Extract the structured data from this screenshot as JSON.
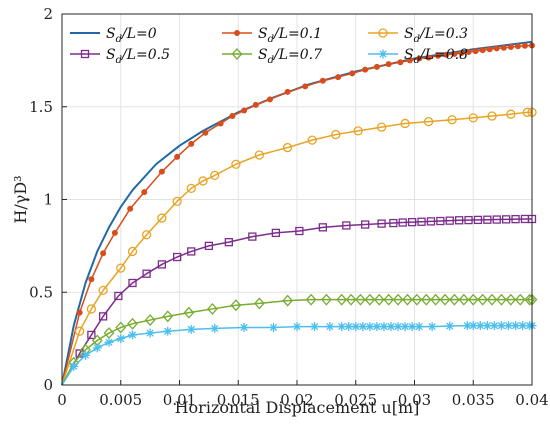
{
  "chart_data": {
    "type": "line",
    "xlabel": "Horizontal Displacement u[m]",
    "ylabel": "H/γD³",
    "xlim": [
      0,
      0.04
    ],
    "ylim": [
      0,
      2
    ],
    "xticks": [
      0,
      0.005,
      0.01,
      0.015,
      0.02,
      0.025,
      0.03,
      0.035,
      0.04
    ],
    "xtick_labels": [
      "0",
      "0.005",
      "0.01",
      "0.015",
      "0.02",
      "0.025",
      "0.03",
      "0.035",
      "0.04"
    ],
    "yticks": [
      0,
      0.5,
      1,
      1.5,
      2
    ],
    "ytick_labels": [
      "0",
      "0.5",
      "1",
      "1.5",
      "2"
    ],
    "grid": true,
    "legend_position": "top-left",
    "series": [
      {
        "name": "S_d/L=0",
        "label_main": "S",
        "label_sub": "d",
        "label_rest": "/L=0",
        "color": "#1f6aa6",
        "marker": "none",
        "x": [
          0,
          0.001,
          0.002,
          0.003,
          0.004,
          0.005,
          0.006,
          0.008,
          0.01,
          0.012,
          0.015,
          0.018,
          0.021,
          0.025,
          0.03,
          0.035,
          0.04
        ],
        "y": [
          0,
          0.32,
          0.55,
          0.72,
          0.85,
          0.96,
          1.05,
          1.19,
          1.29,
          1.37,
          1.47,
          1.55,
          1.62,
          1.69,
          1.76,
          1.81,
          1.85
        ]
      },
      {
        "name": "S_d/L=0.1",
        "label_main": "S",
        "label_sub": "d",
        "label_rest": "/L=0.1",
        "color": "#d84d1c",
        "marker": "dot",
        "x": [
          0,
          0.0015,
          0.0025,
          0.0035,
          0.0045,
          0.0058,
          0.007,
          0.0085,
          0.0098,
          0.011,
          0.0122,
          0.0135,
          0.0145,
          0.0155,
          0.0165,
          0.0177,
          0.0192,
          0.0207,
          0.0222,
          0.0235,
          0.0247,
          0.0258,
          0.0268,
          0.0278,
          0.0288,
          0.0296,
          0.0304,
          0.0312,
          0.032,
          0.0327,
          0.0334,
          0.034,
          0.0346,
          0.0352,
          0.0358,
          0.0364,
          0.037,
          0.0376,
          0.0382,
          0.0388,
          0.0394,
          0.04
        ],
        "y": [
          0,
          0.39,
          0.57,
          0.71,
          0.82,
          0.95,
          1.04,
          1.15,
          1.23,
          1.3,
          1.36,
          1.41,
          1.45,
          1.48,
          1.51,
          1.54,
          1.58,
          1.61,
          1.64,
          1.66,
          1.68,
          1.7,
          1.715,
          1.73,
          1.74,
          1.75,
          1.76,
          1.765,
          1.775,
          1.78,
          1.785,
          1.79,
          1.795,
          1.8,
          1.805,
          1.81,
          1.815,
          1.818,
          1.822,
          1.826,
          1.829,
          1.83
        ]
      },
      {
        "name": "S_d/L=0.3",
        "label_main": "S",
        "label_sub": "d",
        "label_rest": "/L=0.3",
        "color": "#e8a323",
        "marker": "circle",
        "x": [
          0,
          0.0015,
          0.0025,
          0.0035,
          0.005,
          0.006,
          0.0072,
          0.0085,
          0.0098,
          0.011,
          0.012,
          0.013,
          0.0148,
          0.0168,
          0.0192,
          0.0213,
          0.0233,
          0.0252,
          0.0272,
          0.0292,
          0.0312,
          0.0332,
          0.035,
          0.0366,
          0.0382,
          0.0396,
          0.04
        ],
        "y": [
          0,
          0.29,
          0.41,
          0.51,
          0.63,
          0.72,
          0.81,
          0.9,
          0.99,
          1.06,
          1.1,
          1.13,
          1.19,
          1.24,
          1.28,
          1.32,
          1.35,
          1.37,
          1.39,
          1.41,
          1.42,
          1.43,
          1.44,
          1.45,
          1.46,
          1.47,
          1.47
        ]
      },
      {
        "name": "S_d/L=0.5",
        "label_main": "S",
        "label_sub": "d",
        "label_rest": "/L=0.5",
        "color": "#7c2d8c",
        "marker": "square",
        "x": [
          0,
          0.0015,
          0.0025,
          0.0035,
          0.0048,
          0.006,
          0.0072,
          0.0085,
          0.0098,
          0.011,
          0.0125,
          0.0142,
          0.0162,
          0.0182,
          0.0202,
          0.0222,
          0.0242,
          0.0258,
          0.0272,
          0.0282,
          0.029,
          0.0298,
          0.0306,
          0.0314,
          0.0322,
          0.033,
          0.0338,
          0.0346,
          0.0354,
          0.0362,
          0.037,
          0.0378,
          0.0386,
          0.0394,
          0.04
        ],
        "y": [
          0,
          0.17,
          0.27,
          0.37,
          0.48,
          0.55,
          0.6,
          0.65,
          0.69,
          0.72,
          0.75,
          0.77,
          0.8,
          0.82,
          0.83,
          0.85,
          0.86,
          0.865,
          0.87,
          0.873,
          0.876,
          0.878,
          0.88,
          0.882,
          0.884,
          0.886,
          0.888,
          0.889,
          0.89,
          0.891,
          0.892,
          0.893,
          0.894,
          0.895,
          0.895
        ]
      },
      {
        "name": "S_d/L=0.7",
        "label_main": "S",
        "label_sub": "d",
        "label_rest": "/L=0.7",
        "color": "#77ac30",
        "marker": "diamond",
        "x": [
          0,
          0.001,
          0.002,
          0.003,
          0.004,
          0.005,
          0.006,
          0.0075,
          0.009,
          0.0108,
          0.0128,
          0.0148,
          0.0168,
          0.0192,
          0.0212,
          0.0225,
          0.0238,
          0.0246,
          0.0254,
          0.0262,
          0.027,
          0.0278,
          0.0286,
          0.0294,
          0.0302,
          0.031,
          0.0318,
          0.0326,
          0.0334,
          0.0342,
          0.035,
          0.0358,
          0.0366,
          0.0374,
          0.0382,
          0.039,
          0.0398,
          0.04
        ],
        "y": [
          0,
          0.12,
          0.19,
          0.24,
          0.28,
          0.31,
          0.33,
          0.35,
          0.37,
          0.39,
          0.41,
          0.43,
          0.44,
          0.455,
          0.46,
          0.46,
          0.46,
          0.46,
          0.46,
          0.46,
          0.46,
          0.46,
          0.46,
          0.46,
          0.46,
          0.46,
          0.46,
          0.46,
          0.46,
          0.46,
          0.46,
          0.46,
          0.46,
          0.46,
          0.46,
          0.46,
          0.46,
          0.46
        ]
      },
      {
        "name": "S_d/L=0.8",
        "label_main": "S",
        "label_sub": "d",
        "label_rest": "/L=0.8",
        "color": "#4dbeee",
        "marker": "star",
        "x": [
          0,
          0.001,
          0.002,
          0.003,
          0.004,
          0.005,
          0.006,
          0.0075,
          0.009,
          0.011,
          0.013,
          0.0155,
          0.018,
          0.02,
          0.0215,
          0.0228,
          0.0238,
          0.0244,
          0.025,
          0.0256,
          0.0262,
          0.0268,
          0.0274,
          0.028,
          0.0286,
          0.0292,
          0.0298,
          0.0304,
          0.0315,
          0.033,
          0.0345,
          0.035,
          0.0356,
          0.0362,
          0.0368,
          0.0374,
          0.038,
          0.0386,
          0.0392,
          0.0398,
          0.04
        ],
        "y": [
          0,
          0.1,
          0.16,
          0.2,
          0.23,
          0.25,
          0.27,
          0.28,
          0.29,
          0.3,
          0.305,
          0.31,
          0.31,
          0.315,
          0.315,
          0.315,
          0.315,
          0.315,
          0.315,
          0.315,
          0.315,
          0.315,
          0.315,
          0.315,
          0.315,
          0.315,
          0.315,
          0.315,
          0.315,
          0.318,
          0.32,
          0.32,
          0.32,
          0.32,
          0.32,
          0.32,
          0.32,
          0.32,
          0.32,
          0.32,
          0.32
        ]
      }
    ]
  }
}
